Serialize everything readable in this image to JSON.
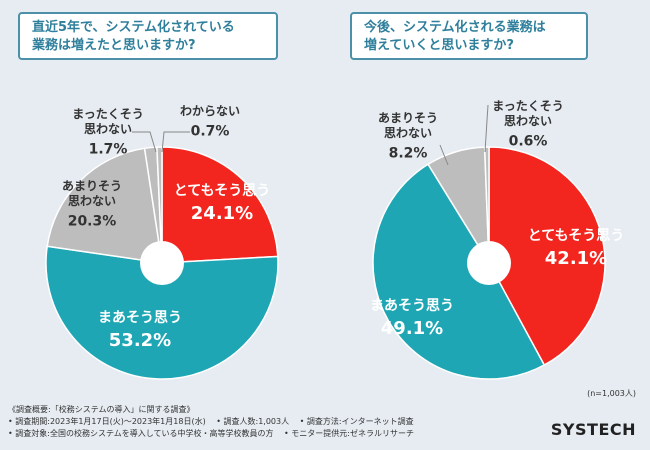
{
  "chart_data": [
    {
      "type": "pie",
      "title": "直近5年で、システム化されている業務は増えたと思いますか?",
      "categories": [
        "とてもそう思う",
        "まあそう思う",
        "あまりそう思わない",
        "まったくそう思わない",
        "わからない"
      ],
      "values": [
        24.1,
        53.2,
        20.3,
        1.7,
        0.7
      ],
      "value_labels": [
        "24.1%",
        "53.2%",
        "20.3%",
        "1.7%",
        "0.7%"
      ],
      "colors": [
        "#f2261f",
        "#1fa6b4",
        "#bdbdbd",
        "#bdbdbd",
        "#bdbdbd"
      ]
    },
    {
      "type": "pie",
      "title": "今後、システム化される業務は増えていくと思いますか?",
      "categories": [
        "とてもそう思う",
        "まあそう思う",
        "あまりそう思わない",
        "まったくそう思わない"
      ],
      "values": [
        42.1,
        49.1,
        8.2,
        0.6
      ],
      "value_labels": [
        "42.1%",
        "49.1%",
        "8.2%",
        "0.6%"
      ],
      "colors": [
        "#f2261f",
        "#1fa6b4",
        "#bdbdbd",
        "#bdbdbd"
      ]
    }
  ],
  "titles": {
    "left_line1": "直近5年で、システム化されている",
    "left_line2": "業務は増えたと思いますか?",
    "right_line1": "今後、システム化される業務は",
    "right_line2": "増えていくと思いますか?"
  },
  "sample_note": "(n=1,003人)",
  "footer": {
    "heading": "《調査概要:「校務システムの導入」に関する調査》",
    "period": "• 調査期間:2023年1月17日(火)〜2023年1月18日(水)",
    "people": "• 調査人数:1,003人",
    "method": "• 調査方法:インターネット調査",
    "target": "• 調査対象:全国の校務システムを導入している中学校・高等学校教員の方",
    "monitor": "• モニター提供元:ゼネラルリサーチ"
  },
  "brand": {
    "main": "SYSTECH"
  }
}
